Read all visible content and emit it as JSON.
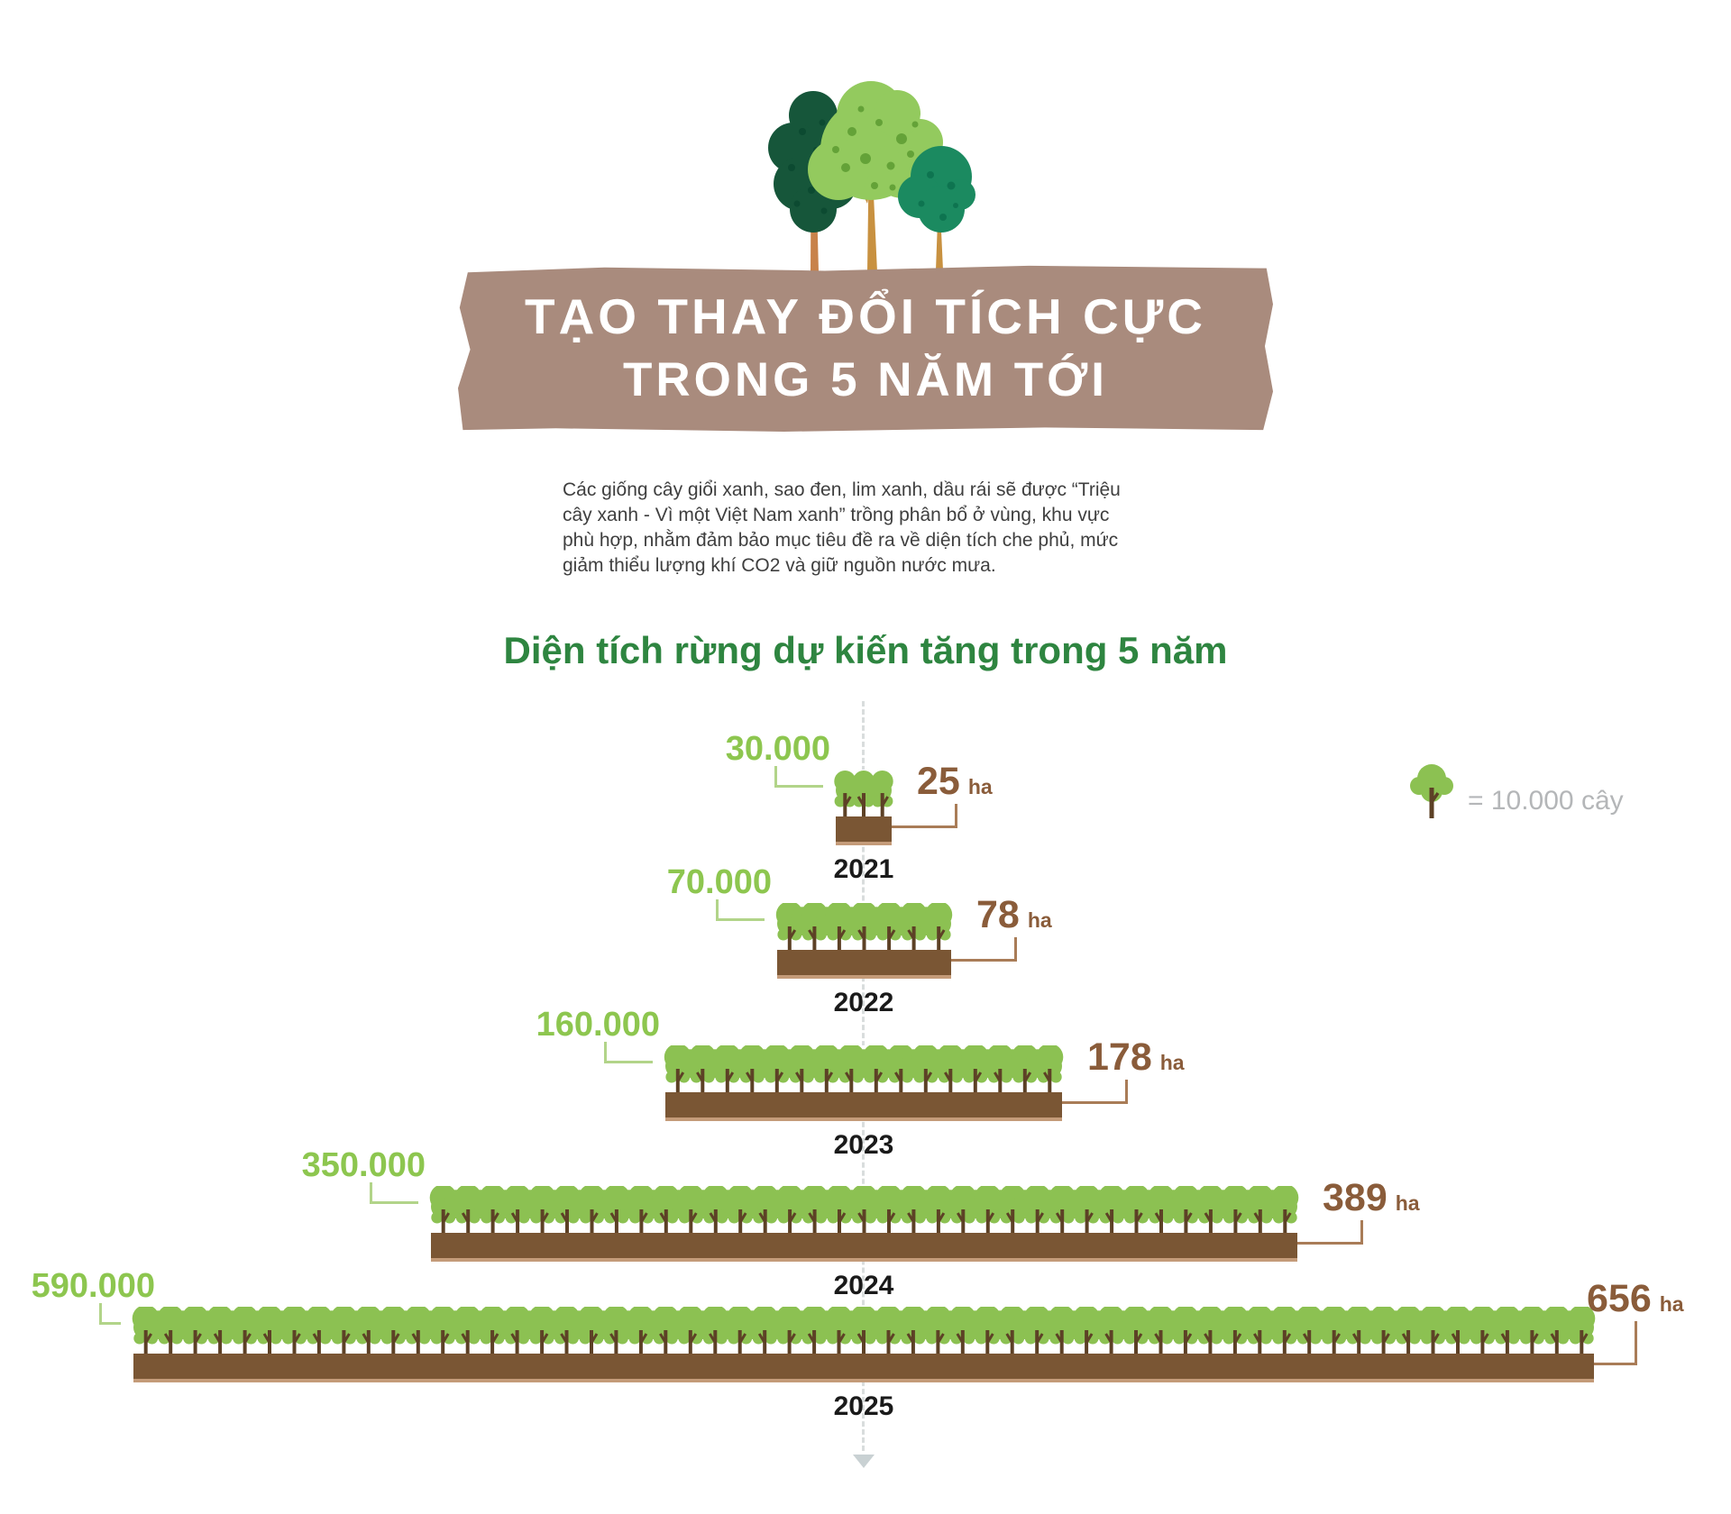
{
  "header": {
    "banner_line1": "TẠO THAY ĐỔI TÍCH CỰC",
    "banner_line2": "TRONG 5 NĂM TỚI"
  },
  "intro": {
    "text": "Các giống cây giổi xanh, sao đen, lim xanh, dầu rái sẽ được “Triệu cây xanh - Vì một Việt Nam xanh” trồng phân bổ ở vùng, khu vực phù hợp, nhằm đảm bảo mục tiêu đề ra về diện tích che phủ, mức giảm thiểu lượng khí CO2 và giữ nguồn nước mưa."
  },
  "chart_data": {
    "type": "pictogram-bar",
    "title": "Diện tích rừng dự kiến tăng trong 5 năm",
    "unit_area": "ha",
    "legend": {
      "label": "= 10.000 cây",
      "trees_per_icon": 10000
    },
    "rows": [
      {
        "year": "2021",
        "trees": 30000,
        "trees_label": "30.000",
        "icons": 3,
        "area_ha": 25,
        "area_label": "25"
      },
      {
        "year": "2022",
        "trees": 70000,
        "trees_label": "70.000",
        "icons": 7,
        "area_ha": 78,
        "area_label": "78"
      },
      {
        "year": "2023",
        "trees": 160000,
        "trees_label": "160.000",
        "icons": 16,
        "area_ha": 178,
        "area_label": "178"
      },
      {
        "year": "2024",
        "trees": 350000,
        "trees_label": "350.000",
        "icons": 35,
        "area_ha": 389,
        "area_label": "389"
      },
      {
        "year": "2025",
        "trees": 590000,
        "trees_label": "590.000",
        "icons": 59,
        "area_ha": 656,
        "area_label": "656"
      }
    ]
  },
  "colors": {
    "green": "#8dc64f",
    "canopy": "#8cc152",
    "trunk": "#5d4126",
    "soil": "#7a5634",
    "brown_text": "#8a5c3a",
    "connector_green": "#b2d489",
    "connector_brown": "#a97c57",
    "heading": "#2e8540",
    "banner_bg": "#a98b7d",
    "legend_text": "#b4b6b8",
    "dash": "#d9dddd"
  }
}
